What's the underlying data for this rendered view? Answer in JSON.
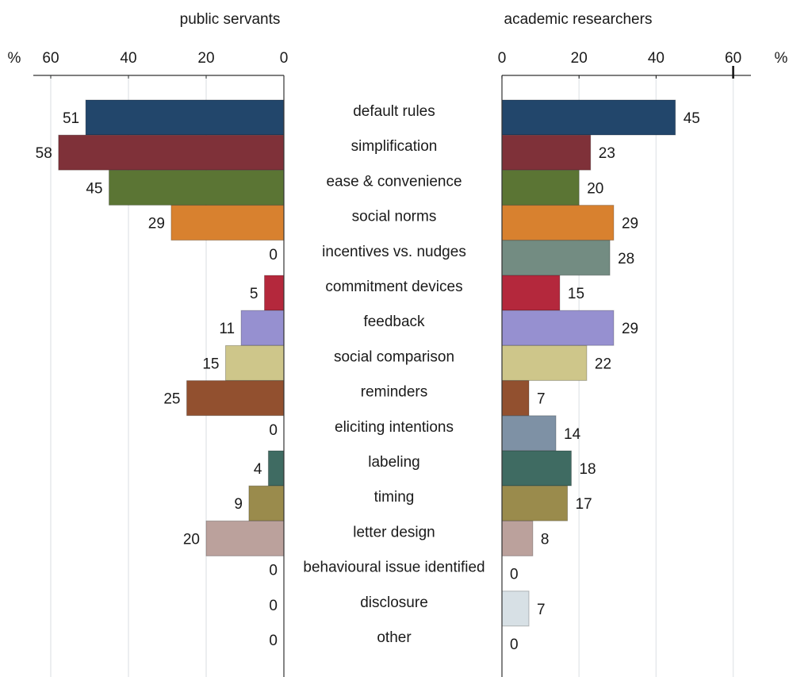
{
  "chart_data": {
    "type": "bar",
    "orientation": "horizontal",
    "layout": "back-to-back",
    "unit_label": "%",
    "categories": [
      "default rules",
      "simplification",
      "ease & convenience",
      "social norms",
      "incentives vs. nudges",
      "commitment devices",
      "feedback",
      "social comparison",
      "reminders",
      "eliciting intentions",
      "labeling",
      "timing",
      "letter design",
      "behavioural issue identified",
      "disclosure",
      "other"
    ],
    "colors": [
      "#22466b",
      "#7f3139",
      "#5b7534",
      "#d8812f",
      "#738c82",
      "#b4283c",
      "#9690d0",
      "#cec68a",
      "#92502f",
      "#7e91a5",
      "#3f6b62",
      "#9a8b4c",
      "#bba19c",
      "#2b4c6f",
      "#d7e0e5",
      "#c8c8c8"
    ],
    "grid": true,
    "series": [
      {
        "name": "public servants",
        "values": [
          51,
          58,
          45,
          29,
          0,
          5,
          11,
          15,
          25,
          0,
          4,
          9,
          20,
          0,
          0,
          0
        ],
        "xlim": [
          0,
          60
        ],
        "ticks": [
          0,
          20,
          40,
          60
        ],
        "direction": "reversed"
      },
      {
        "name": "academic researchers",
        "values": [
          45,
          23,
          20,
          29,
          28,
          15,
          29,
          22,
          7,
          14,
          18,
          17,
          8,
          0,
          7,
          0
        ],
        "xlim": [
          0,
          60
        ],
        "ticks": [
          0,
          20,
          40,
          60
        ],
        "direction": "normal"
      }
    ]
  }
}
